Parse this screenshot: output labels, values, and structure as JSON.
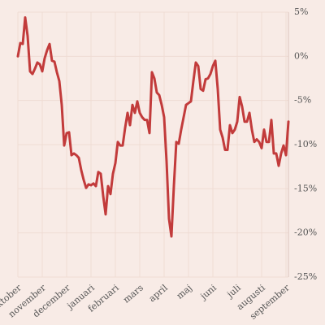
{
  "chart_data": {
    "type": "line",
    "color": "#c23b3b",
    "grid": true,
    "y_axis_side": "right",
    "x": [
      0,
      0.1,
      0.2,
      0.3,
      0.4,
      0.5,
      0.6,
      0.7,
      0.8,
      0.9,
      1,
      1.1,
      1.2,
      1.3,
      1.4,
      1.5,
      1.6,
      1.7,
      1.8,
      1.9,
      2,
      2.1,
      2.2,
      2.3,
      2.4,
      2.5,
      2.6,
      2.7,
      2.8,
      2.9,
      3,
      3.1,
      3.2,
      3.3,
      3.4,
      3.5,
      3.6,
      3.7,
      3.8,
      3.9,
      4,
      4.1,
      4.2,
      4.3,
      4.4,
      4.5,
      4.6,
      4.7,
      4.8,
      4.9,
      5,
      5.1,
      5.2,
      5.3,
      5.4,
      5.5,
      5.6,
      5.7,
      5.8,
      5.9,
      6,
      6.1,
      6.2,
      6.3,
      6.4,
      6.5,
      6.6,
      6.7,
      6.8,
      6.9,
      7,
      7.1,
      7.2,
      7.3,
      7.4,
      7.5,
      7.6,
      7.7,
      7.8,
      7.9,
      8,
      8.1,
      8.2,
      8.3,
      8.4,
      8.5,
      8.6,
      8.7,
      8.8,
      8.9,
      9,
      9.1,
      9.2,
      9.3,
      9.4,
      9.5,
      9.6,
      9.7,
      9.8,
      9.9,
      10,
      10.1,
      10.2,
      10.3,
      10.4,
      10.5,
      10.6,
      10.7,
      10.8,
      10.9,
      11,
      11.1
    ],
    "values": [
      0,
      1.5,
      1.4,
      4.4,
      2.3,
      -1.7,
      -2.0,
      -1.4,
      -0.7,
      -0.9,
      -1.7,
      -0.2,
      0.7,
      1.4,
      -0.5,
      -0.6,
      -1.8,
      -2.8,
      -5.5,
      -10.1,
      -8.7,
      -8.6,
      -11.2,
      -11.0,
      -11.2,
      -11.5,
      -12.9,
      -14.0,
      -14.9,
      -14.5,
      -14.6,
      -14.4,
      -14.7,
      -13.1,
      -13.3,
      -15.8,
      -17.9,
      -14.7,
      -15.6,
      -13.3,
      -12.1,
      -9.7,
      -10.1,
      -10.1,
      -8.1,
      -6.4,
      -7.8,
      -5.5,
      -6.4,
      -5.1,
      -6.4,
      -6.9,
      -7.2,
      -7.2,
      -8.7,
      -1.8,
      -2.5,
      -4.1,
      -4.4,
      -5.5,
      -6.9,
      -11.9,
      -18.4,
      -20.4,
      -14.7,
      -9.7,
      -9.9,
      -8.3,
      -6.9,
      -5.5,
      -5.3,
      -5.1,
      -2.8,
      -0.7,
      -1.1,
      -3.7,
      -3.9,
      -2.6,
      -2.5,
      -2.0,
      -1.1,
      -0.5,
      -3.7,
      -8.3,
      -9.2,
      -10.6,
      -10.6,
      -7.8,
      -8.7,
      -8.3,
      -7.4,
      -4.6,
      -5.7,
      -7.4,
      -7.4,
      -6.4,
      -8.3,
      -9.7,
      -9.4,
      -9.7,
      -10.4,
      -8.3,
      -9.7,
      -9.7,
      -7.2,
      -11.0,
      -11.0,
      -12.4,
      -11.0,
      -10.1,
      -11.2,
      -7.4
    ],
    "xlim": [
      0,
      11.1
    ],
    "xticks": [
      {
        "value": 0,
        "label": "oktober"
      },
      {
        "value": 1,
        "label": "november"
      },
      {
        "value": 2,
        "label": "december"
      },
      {
        "value": 3,
        "label": "januari"
      },
      {
        "value": 4,
        "label": "februari"
      },
      {
        "value": 5,
        "label": "mars"
      },
      {
        "value": 6,
        "label": "april"
      },
      {
        "value": 7,
        "label": "maj"
      },
      {
        "value": 8,
        "label": "juni"
      },
      {
        "value": 9,
        "label": "juli"
      },
      {
        "value": 10,
        "label": "augusti"
      },
      {
        "value": 11,
        "label": "september"
      }
    ],
    "ylim": [
      -25,
      5
    ],
    "yticks": [
      {
        "value": 5,
        "label": "5%"
      },
      {
        "value": 0,
        "label": "0%"
      },
      {
        "value": -5,
        "label": "-5%"
      },
      {
        "value": -10,
        "label": "-10%"
      },
      {
        "value": -15,
        "label": "-15%"
      },
      {
        "value": -20,
        "label": "-20%"
      },
      {
        "value": -25,
        "label": "-25%"
      }
    ]
  }
}
